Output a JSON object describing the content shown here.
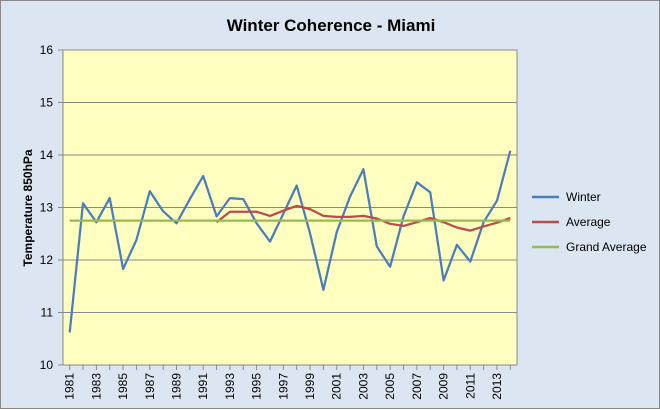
{
  "chart_data": {
    "type": "line",
    "title": "Winter Coherence - Miami",
    "xlabel": "",
    "ylabel": "Temperature 850hPa",
    "ylim": [
      10,
      16
    ],
    "yticks": [
      10,
      11,
      12,
      13,
      14,
      15,
      16
    ],
    "x": [
      1981,
      1982,
      1983,
      1984,
      1985,
      1986,
      1987,
      1988,
      1989,
      1990,
      1991,
      1992,
      1993,
      1994,
      1995,
      1996,
      1997,
      1998,
      1999,
      2000,
      2001,
      2002,
      2003,
      2004,
      2005,
      2006,
      2007,
      2008,
      2009,
      2010,
      2011,
      2012,
      2013,
      2014
    ],
    "xtick_labels": [
      "1981",
      "1983",
      "1985",
      "1987",
      "1989",
      "1991",
      "1993",
      "1995",
      "1997",
      "1999",
      "2001",
      "2003",
      "2005",
      "2007",
      "2009",
      "2011",
      "2013"
    ],
    "grid": "horizontal",
    "legend_position": "right",
    "series": [
      {
        "name": "Winter",
        "color": "#4a7ebb",
        "values": [
          10.62,
          13.08,
          12.72,
          13.18,
          11.83,
          12.38,
          13.31,
          12.93,
          12.7,
          13.16,
          13.6,
          12.83,
          13.18,
          13.16,
          12.7,
          12.35,
          12.88,
          13.42,
          12.51,
          11.43,
          12.53,
          13.21,
          13.73,
          12.26,
          11.87,
          12.83,
          13.48,
          13.29,
          11.61,
          12.29,
          11.97,
          12.72,
          13.13,
          14.08
        ]
      },
      {
        "name": "Average",
        "color": "#be4b48",
        "values": [
          null,
          null,
          null,
          null,
          null,
          null,
          null,
          null,
          null,
          null,
          null,
          12.72,
          12.92,
          12.92,
          12.92,
          12.84,
          12.94,
          13.03,
          12.97,
          12.84,
          12.82,
          12.82,
          12.84,
          12.79,
          12.69,
          12.65,
          12.72,
          12.8,
          12.72,
          12.62,
          12.56,
          12.64,
          12.71,
          12.8
        ]
      },
      {
        "name": "Grand Average",
        "color": "#98b954",
        "values": [
          12.75,
          12.75,
          12.75,
          12.75,
          12.75,
          12.75,
          12.75,
          12.75,
          12.75,
          12.75,
          12.75,
          12.75,
          12.75,
          12.75,
          12.75,
          12.75,
          12.75,
          12.75,
          12.75,
          12.75,
          12.75,
          12.75,
          12.75,
          12.75,
          12.75,
          12.75,
          12.75,
          12.75,
          12.75,
          12.75,
          12.75,
          12.75,
          12.75,
          12.75
        ]
      }
    ],
    "plot_background": "#ffffc0",
    "chart_background": "#dce6f2"
  }
}
